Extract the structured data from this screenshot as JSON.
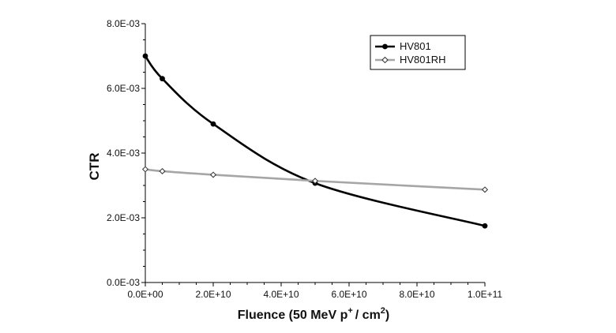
{
  "chart_data": {
    "type": "line",
    "title": "",
    "xlabel": "Fluence (50 MeV p",
    "xlabel_sup1": "+",
    "xlabel_mid": "/ cm",
    "xlabel_sup2": "2",
    "xlabel_end": ")",
    "ylabel": "CTR",
    "xlim": [
      0,
      100000000000
    ],
    "ylim": [
      0,
      0.008
    ],
    "x_ticks": [
      0,
      20000000000,
      40000000000,
      60000000000,
      80000000000,
      100000000000
    ],
    "x_tick_labels": [
      "0.0E+00",
      "2.0E+10",
      "4.0E+10",
      "6.0E+10",
      "8.0E+10",
      "1.0E+11"
    ],
    "y_ticks": [
      0,
      0.002,
      0.004,
      0.006,
      0.008
    ],
    "y_tick_labels": [
      "0.0E-03",
      "2.0E-03",
      "4.0E-03",
      "6.0E-03",
      "8.0E-03"
    ],
    "grid": false,
    "legend_position": "top-right",
    "series": [
      {
        "name": "HV801",
        "color": "#000000",
        "marker": "circle",
        "x": [
          0,
          5000000000,
          20000000000,
          50000000000,
          100000000000
        ],
        "y": [
          0.007,
          0.0063,
          0.0049,
          0.00307,
          0.00175
        ]
      },
      {
        "name": "HV801RH",
        "color": "#a6a6a6",
        "marker": "diamond",
        "x": [
          0,
          5000000000,
          20000000000,
          50000000000,
          100000000000
        ],
        "y": [
          0.0035,
          0.00344,
          0.00333,
          0.00314,
          0.00287
        ]
      }
    ]
  }
}
